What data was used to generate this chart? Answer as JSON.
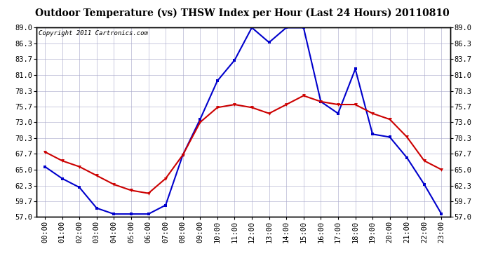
{
  "title": "Outdoor Temperature (vs) THSW Index per Hour (Last 24 Hours) 20110810",
  "copyright": "Copyright 2011 Cartronics.com",
  "hours": [
    "00:00",
    "01:00",
    "02:00",
    "03:00",
    "04:00",
    "05:00",
    "06:00",
    "07:00",
    "08:00",
    "09:00",
    "10:00",
    "11:00",
    "12:00",
    "13:00",
    "14:00",
    "15:00",
    "16:00",
    "17:00",
    "18:00",
    "19:00",
    "20:00",
    "21:00",
    "22:00",
    "23:00"
  ],
  "temp_red": [
    68.0,
    66.5,
    65.5,
    64.0,
    62.5,
    61.5,
    61.0,
    63.5,
    67.5,
    73.0,
    75.5,
    76.0,
    75.5,
    74.5,
    76.0,
    77.5,
    76.5,
    76.0,
    76.0,
    74.5,
    73.5,
    70.5,
    66.5,
    65.0
  ],
  "thsw_blue": [
    65.5,
    63.5,
    62.0,
    58.5,
    57.5,
    57.5,
    57.5,
    59.0,
    67.5,
    73.5,
    80.0,
    83.5,
    89.0,
    86.5,
    89.0,
    89.0,
    76.5,
    74.5,
    82.0,
    71.0,
    70.5,
    67.0,
    62.5,
    57.5
  ],
  "ylim_min": 57.0,
  "ylim_max": 89.0,
  "yticks": [
    57.0,
    59.7,
    62.3,
    65.0,
    67.7,
    70.3,
    73.0,
    75.7,
    78.3,
    81.0,
    83.7,
    86.3,
    89.0
  ],
  "bg_color": "#ffffff",
  "grid_color": "#aaaacc",
  "title_bg": "#d0d0d0",
  "plot_bg": "#ffffff",
  "red_color": "#cc0000",
  "blue_color": "#0000cc",
  "border_color": "#000000",
  "title_fontsize": 10.0,
  "copyright_fontsize": 6.5,
  "tick_fontsize": 7.5
}
